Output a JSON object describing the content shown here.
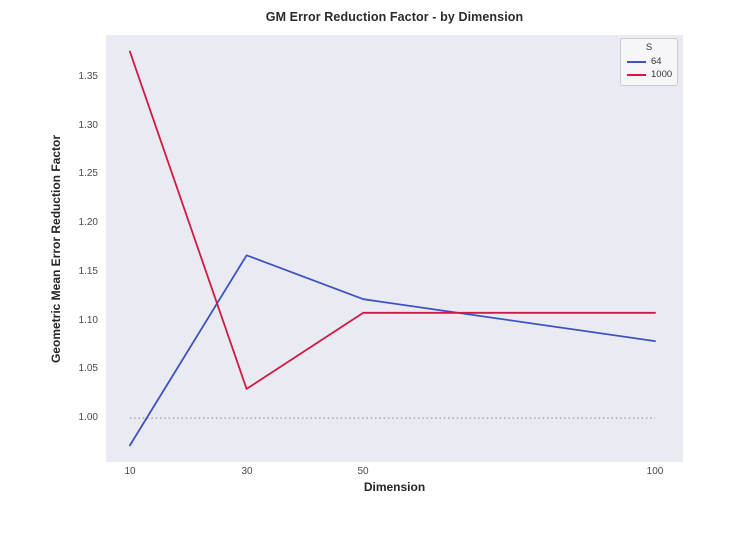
{
  "figure": {
    "background": "#ffffff",
    "plot_background": "#eaebf2"
  },
  "chart_data": {
    "type": "line",
    "title": "GM Error Reduction Factor - by Dimension",
    "xlabel": "Dimension",
    "ylabel": "Geometric Mean Error Reduction Factor",
    "x": [
      10,
      30,
      50,
      100
    ],
    "series": [
      {
        "name": "64",
        "color": "#3e51c1",
        "values": [
          0.972,
          1.167,
          1.122,
          1.079
        ]
      },
      {
        "name": "1000",
        "color": "#ce1a45",
        "values": [
          1.376,
          1.03,
          1.108,
          1.108
        ]
      }
    ],
    "xticks": [
      10,
      30,
      50,
      100
    ],
    "yticks": [
      1.0,
      1.05,
      1.1,
      1.15,
      1.2,
      1.25,
      1.3,
      1.35
    ],
    "xlim": [
      5.9,
      104.8
    ],
    "ylim": [
      0.955,
      1.393
    ],
    "grid": false,
    "reference_line": {
      "y": 1.0,
      "style": "dotted",
      "color": "#9a9a9a",
      "x_start": 10,
      "x_end": 100
    },
    "legend": {
      "title": "S",
      "position": "upper right",
      "entries": [
        "64",
        "1000"
      ]
    }
  }
}
